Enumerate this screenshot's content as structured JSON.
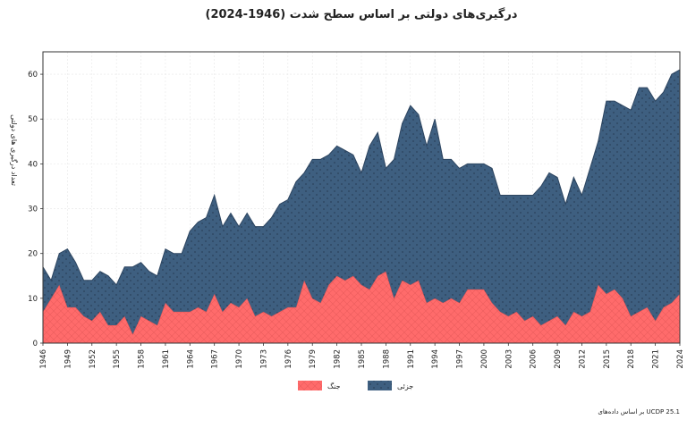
{
  "chart_data": {
    "type": "area",
    "stacked": true,
    "title": "درگیری‌های دولتی بر اساس سطح شدت (1946-2024)",
    "xlabel": "",
    "ylabel": "تعداد درگیری های دولتی",
    "source": "بر اساس داده‌های UCDP 25.1",
    "xlim": [
      1946,
      2024
    ],
    "ylim": [
      0,
      65
    ],
    "x_ticks": [
      1946,
      1949,
      1952,
      1955,
      1958,
      1961,
      1964,
      1967,
      1970,
      1973,
      1976,
      1979,
      1982,
      1985,
      1988,
      1991,
      1994,
      1997,
      2000,
      2003,
      2006,
      2009,
      2012,
      2015,
      2018,
      2021,
      2024
    ],
    "y_ticks": [
      0,
      10,
      20,
      30,
      40,
      50,
      60
    ],
    "grid": true,
    "legend_position": "bottom-center",
    "x": [
      1946,
      1947,
      1948,
      1949,
      1950,
      1951,
      1952,
      1953,
      1954,
      1955,
      1956,
      1957,
      1958,
      1959,
      1960,
      1961,
      1962,
      1963,
      1964,
      1965,
      1966,
      1967,
      1968,
      1969,
      1970,
      1971,
      1972,
      1973,
      1974,
      1975,
      1976,
      1977,
      1978,
      1979,
      1980,
      1981,
      1982,
      1983,
      1984,
      1985,
      1986,
      1987,
      1988,
      1989,
      1990,
      1991,
      1992,
      1993,
      1994,
      1995,
      1996,
      1997,
      1998,
      1999,
      2000,
      2001,
      2002,
      2003,
      2004,
      2005,
      2006,
      2007,
      2008,
      2009,
      2010,
      2011,
      2012,
      2013,
      2014,
      2015,
      2016,
      2017,
      2018,
      2019,
      2020,
      2021,
      2022,
      2023,
      2024
    ],
    "series": [
      {
        "name": "جنگ",
        "color": "#ff6b6b",
        "values": [
          7,
          10,
          13,
          8,
          8,
          6,
          5,
          7,
          4,
          4,
          6,
          2,
          6,
          5,
          4,
          9,
          7,
          7,
          7,
          8,
          7,
          11,
          7,
          9,
          8,
          10,
          6,
          7,
          6,
          7,
          8,
          8,
          14,
          10,
          9,
          13,
          15,
          14,
          15,
          13,
          12,
          15,
          16,
          10,
          14,
          13,
          14,
          9,
          10,
          9,
          10,
          9,
          12,
          12,
          12,
          9,
          7,
          6,
          7,
          5,
          6,
          4,
          5,
          6,
          4,
          7,
          6,
          7,
          13,
          11,
          12,
          10,
          6,
          7,
          8,
          5,
          8,
          9,
          11
        ]
      },
      {
        "name": "جزئی",
        "color": "#3e5f80",
        "values": [
          10,
          4,
          7,
          13,
          10,
          8,
          9,
          9,
          11,
          9,
          11,
          15,
          12,
          11,
          11,
          12,
          13,
          13,
          18,
          19,
          21,
          22,
          19,
          20,
          18,
          19,
          20,
          19,
          22,
          24,
          24,
          28,
          24,
          31,
          32,
          29,
          29,
          29,
          27,
          25,
          32,
          32,
          23,
          31,
          35,
          40,
          37,
          35,
          40,
          32,
          31,
          30,
          28,
          28,
          28,
          30,
          26,
          27,
          26,
          28,
          27,
          31,
          33,
          31,
          27,
          30,
          27,
          32,
          32,
          43,
          42,
          43,
          46,
          50,
          49,
          49,
          48,
          51,
          50
        ]
      }
    ]
  }
}
